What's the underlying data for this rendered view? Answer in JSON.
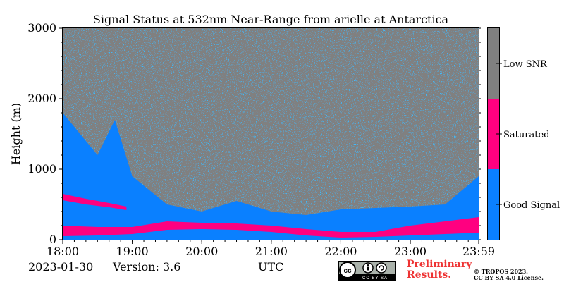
{
  "chart_data": {
    "type": "heatmap",
    "title": "Signal Status at 532nm Near-Range from arielle at Antarctica",
    "ylabel": "Height (m)",
    "xlabel": "UTC",
    "xlim": [
      "18:00",
      "23:59"
    ],
    "ylim": [
      0,
      3000
    ],
    "x_ticks": [
      "18:00",
      "19:00",
      "20:00",
      "21:00",
      "22:00",
      "23:00",
      "23:59"
    ],
    "y_ticks": [
      0,
      1000,
      2000,
      3000
    ],
    "categories": [
      {
        "label": "Good Signal",
        "color": "#0a80ff"
      },
      {
        "label": "Saturated",
        "color": "#ff0080"
      },
      {
        "label": "Low SNR",
        "color": "#808080"
      }
    ],
    "good_signal_top_m": [
      {
        "t": "18:00",
        "h": 1800
      },
      {
        "t": "18:30",
        "h": 1200
      },
      {
        "t": "18:45",
        "h": 1700
      },
      {
        "t": "19:00",
        "h": 900
      },
      {
        "t": "19:30",
        "h": 500
      },
      {
        "t": "20:00",
        "h": 400
      },
      {
        "t": "20:30",
        "h": 550
      },
      {
        "t": "21:00",
        "h": 400
      },
      {
        "t": "21:30",
        "h": 350
      },
      {
        "t": "22:00",
        "h": 430
      },
      {
        "t": "22:30",
        "h": 450
      },
      {
        "t": "23:00",
        "h": 470
      },
      {
        "t": "23:30",
        "h": 500
      },
      {
        "t": "23:59",
        "h": 900
      }
    ],
    "saturated_layer_m": [
      {
        "t": "18:00",
        "bottom": 50,
        "top": 200
      },
      {
        "t": "18:30",
        "bottom": 60,
        "top": 180
      },
      {
        "t": "19:00",
        "bottom": 80,
        "top": 180
      },
      {
        "t": "19:30",
        "bottom": 140,
        "top": 260
      },
      {
        "t": "20:00",
        "bottom": 150,
        "top": 240
      },
      {
        "t": "20:30",
        "bottom": 140,
        "top": 230
      },
      {
        "t": "21:00",
        "bottom": 110,
        "top": 200
      },
      {
        "t": "21:30",
        "bottom": 60,
        "top": 150
      },
      {
        "t": "22:00",
        "bottom": 30,
        "top": 110
      },
      {
        "t": "22:30",
        "bottom": 40,
        "top": 110
      },
      {
        "t": "23:00",
        "bottom": 60,
        "top": 200
      },
      {
        "t": "23:30",
        "bottom": 80,
        "top": 260
      },
      {
        "t": "23:59",
        "bottom": 100,
        "top": 320
      }
    ],
    "saturated_upper_layer_m": [
      {
        "t": "18:00",
        "bottom": 560,
        "top": 650
      },
      {
        "t": "18:20",
        "bottom": 500,
        "top": 580
      },
      {
        "t": "18:40",
        "bottom": 460,
        "top": 520
      },
      {
        "t": "18:55",
        "bottom": 420,
        "top": 470
      }
    ]
  },
  "footer": {
    "date": "2023-01-30",
    "version": "Version: 3.6",
    "license_badge": "CC BY SA",
    "preliminary_line1": "Preliminary",
    "preliminary_line2": "Results.",
    "copyright_line1": "© TROPOS 2023.",
    "copyright_line2": "CC BY SA 4.0 License."
  }
}
